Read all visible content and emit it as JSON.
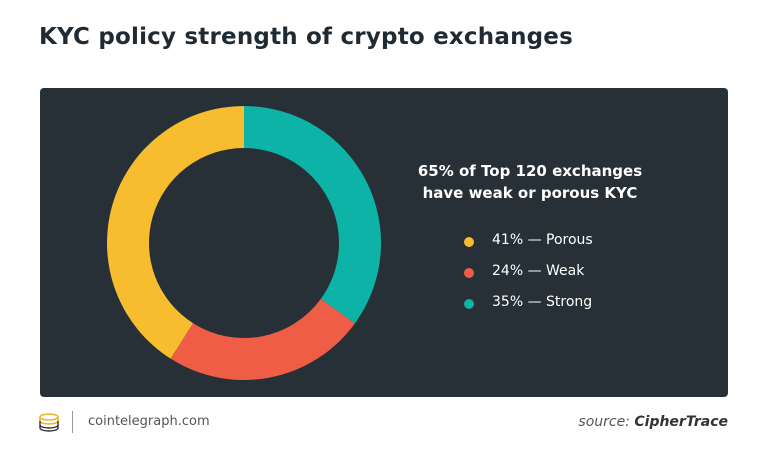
{
  "title": "KYC policy strength of crypto exchanges",
  "chart_data": {
    "type": "pie",
    "donut": true,
    "headline": [
      "65% of Top 120 exchanges",
      "have weak or porous KYC"
    ],
    "series": [
      {
        "name": "Porous",
        "value": 41,
        "label": "41% — Porous",
        "color": "#f7bd2f"
      },
      {
        "name": "Weak",
        "value": 24,
        "label": "24% — Weak",
        "color": "#f05d46"
      },
      {
        "name": "Strong",
        "value": 35,
        "label": "35% — Strong",
        "color": "#0db3a6"
      }
    ],
    "background": "#263036"
  },
  "footer": {
    "site": "cointelegraph.com",
    "source_label": "source:",
    "source_name": "CipherTrace"
  }
}
